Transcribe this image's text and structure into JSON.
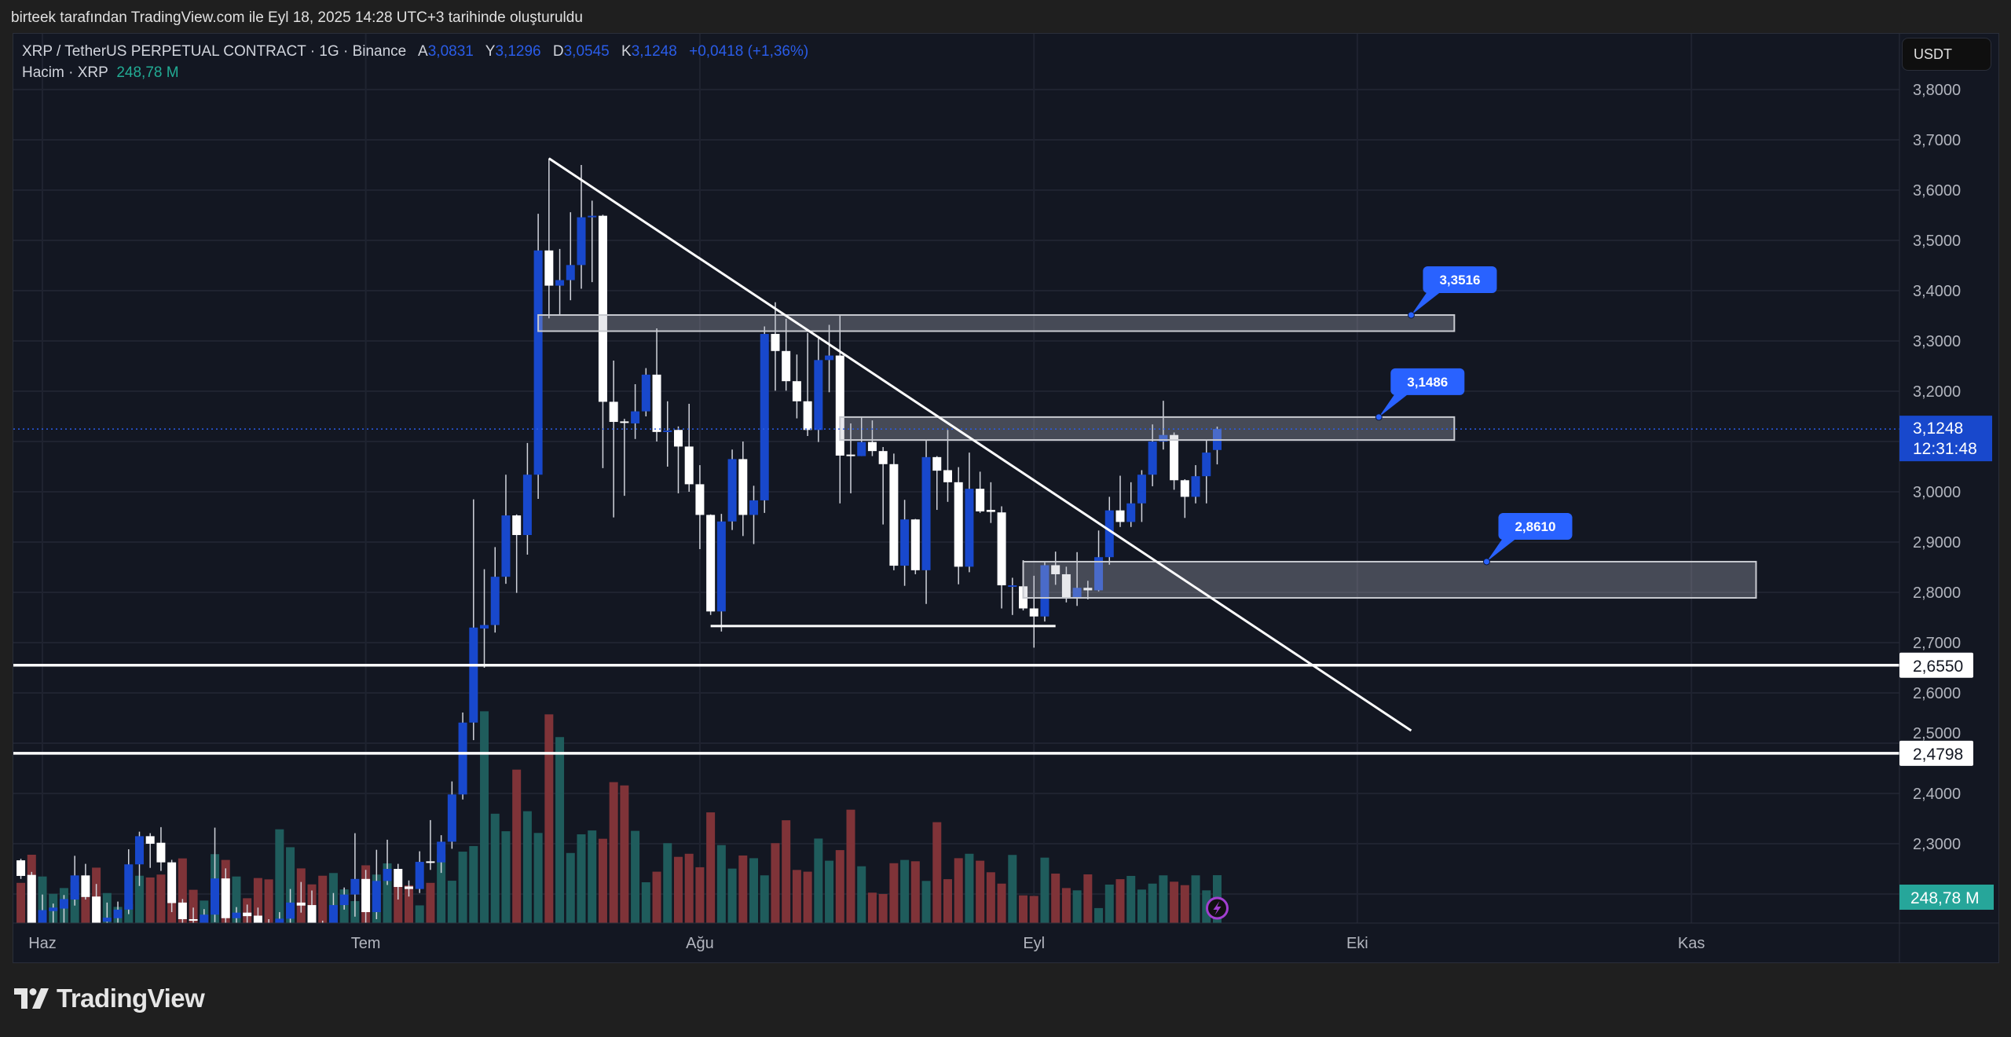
{
  "caption": "birteek tarafından TradingView.com ile Eyl 18, 2025 14:28 UTC+3 tarihinde oluşturuldu",
  "legend": {
    "symbol": "XRP / TetherUS PERPETUAL CONTRACT · 1G · Binance",
    "open_label": "A",
    "open": "3,0831",
    "high_label": "Y",
    "high": "3,1296",
    "low_label": "D",
    "low": "3,0545",
    "close_label": "K",
    "close": "3,1248",
    "change": "+0,0418 (+1,36%)",
    "volume_label": "Hacim · XRP",
    "volume": "248,78 M"
  },
  "currency_button": "USDT",
  "logo_text": "TradingView",
  "colors": {
    "background": "#131722",
    "up_candle": "#1848cc",
    "down_candle": "#ffffff",
    "up_volume": "#1f5c5c",
    "down_volume": "#7f3338",
    "price_label": "#1848cc",
    "volume_label": "#26a69a",
    "callout": "#2962ff",
    "alert_icon": "#a23fd0"
  },
  "chart_data": {
    "type": "candlestick",
    "title": "",
    "ylabel": "",
    "xlabel": "",
    "ylim": [
      2.1,
      3.85
    ],
    "grid": true,
    "y_ticks": [
      "3,8000",
      "3,7000",
      "3,6000",
      "3,5000",
      "3,4000",
      "3,3000",
      "3,2000",
      "3,0000",
      "2,9000",
      "2,8000",
      "2,7000",
      "2,6000",
      "2,5000",
      "2,4000",
      "2,3000"
    ],
    "y_tick_values": [
      3.8,
      3.7,
      3.6,
      3.5,
      3.4,
      3.3,
      3.2,
      3.0,
      2.9,
      2.8,
      2.7,
      2.6,
      2.5,
      2.4,
      2.3
    ],
    "x_ticks": [
      {
        "label": "Haz",
        "date": "2025-06-01"
      },
      {
        "label": "Tem",
        "date": "2025-07-01"
      },
      {
        "label": "Ağu",
        "date": "2025-08-01"
      },
      {
        "label": "Eyl",
        "date": "2025-09-01"
      },
      {
        "label": "Eki",
        "date": "2025-10-01"
      },
      {
        "label": "Kas",
        "date": "2025-11-01"
      }
    ],
    "columns": [
      "date",
      "open",
      "high",
      "low",
      "close",
      "volume_m"
    ],
    "candles": [
      [
        "2025-05-30",
        2.267,
        2.27,
        2.23,
        2.236,
        209
      ],
      [
        "2025-05-31",
        2.238,
        2.244,
        2.14,
        2.142,
        355
      ],
      [
        "2025-06-01",
        2.142,
        2.199,
        2.14,
        2.168,
        242
      ],
      [
        "2025-06-02",
        2.166,
        2.181,
        2.142,
        2.173,
        152
      ],
      [
        "2025-06-03",
        2.171,
        2.198,
        2.142,
        2.19,
        182
      ],
      [
        "2025-06-04",
        2.189,
        2.276,
        2.177,
        2.237,
        212
      ],
      [
        "2025-06-05",
        2.237,
        2.26,
        2.189,
        2.194,
        135
      ],
      [
        "2025-06-06",
        2.195,
        2.22,
        2.14,
        2.142,
        288
      ],
      [
        "2025-06-07",
        2.145,
        2.183,
        2.14,
        2.153,
        156
      ],
      [
        "2025-06-08",
        2.152,
        2.185,
        2.142,
        2.169,
        84
      ],
      [
        "2025-06-09",
        2.169,
        2.289,
        2.16,
        2.259,
        100
      ],
      [
        "2025-06-10",
        2.259,
        2.324,
        2.216,
        2.315,
        246
      ],
      [
        "2025-06-11",
        2.315,
        2.321,
        2.252,
        2.3,
        237
      ],
      [
        "2025-06-12",
        2.302,
        2.333,
        2.246,
        2.263,
        252
      ],
      [
        "2025-06-13",
        2.263,
        2.268,
        2.164,
        2.182,
        209
      ],
      [
        "2025-06-14",
        2.183,
        2.19,
        2.14,
        2.15,
        336
      ],
      [
        "2025-06-15",
        2.15,
        2.173,
        2.13,
        2.148,
        173
      ],
      [
        "2025-06-16",
        2.142,
        2.17,
        2.13,
        2.159,
        117
      ],
      [
        "2025-06-17",
        2.159,
        2.332,
        2.144,
        2.231,
        358
      ],
      [
        "2025-06-18",
        2.231,
        2.251,
        2.14,
        2.152,
        328
      ],
      [
        "2025-06-19",
        2.152,
        2.174,
        2.14,
        2.163,
        242
      ],
      [
        "2025-06-20",
        2.163,
        2.179,
        2.14,
        2.156,
        129
      ],
      [
        "2025-06-21",
        2.157,
        2.173,
        2.13,
        2.142,
        234
      ],
      [
        "2025-06-22",
        2.142,
        2.15,
        2.06,
        2.11,
        227
      ],
      [
        "2025-06-23",
        2.11,
        2.164,
        2.1,
        2.151,
        487
      ],
      [
        "2025-06-24",
        2.151,
        2.21,
        2.14,
        2.183,
        394
      ],
      [
        "2025-06-25",
        2.183,
        2.224,
        2.163,
        2.177,
        284
      ],
      [
        "2025-06-26",
        2.178,
        2.207,
        2.13,
        2.142,
        201
      ],
      [
        "2025-06-27",
        2.142,
        2.147,
        2.1,
        2.12,
        246
      ],
      [
        "2025-06-28",
        2.12,
        2.202,
        2.11,
        2.178,
        260
      ],
      [
        "2025-06-29",
        2.178,
        2.213,
        2.169,
        2.199,
        175
      ],
      [
        "2025-06-30",
        2.199,
        2.321,
        2.155,
        2.23,
        114
      ],
      [
        "2025-07-01",
        2.23,
        2.248,
        2.14,
        2.164,
        300
      ],
      [
        "2025-07-02",
        2.164,
        2.288,
        2.15,
        2.226,
        252
      ],
      [
        "2025-07-03",
        2.226,
        2.308,
        2.218,
        2.25,
        310
      ],
      [
        "2025-07-04",
        2.25,
        2.26,
        2.189,
        2.214,
        203
      ],
      [
        "2025-07-05",
        2.215,
        2.227,
        2.195,
        2.21,
        196
      ],
      [
        "2025-07-06",
        2.21,
        2.285,
        2.202,
        2.264,
        92
      ],
      [
        "2025-07-07",
        2.265,
        2.347,
        2.248,
        2.263,
        209
      ],
      [
        "2025-07-08",
        2.263,
        2.317,
        2.242,
        2.304,
        358
      ],
      [
        "2025-07-09",
        2.304,
        2.424,
        2.29,
        2.398,
        220
      ],
      [
        "2025-07-10",
        2.398,
        2.561,
        2.388,
        2.541,
        371
      ],
      [
        "2025-07-11",
        2.541,
        2.985,
        2.506,
        2.73,
        400
      ],
      [
        "2025-07-12",
        2.728,
        2.846,
        2.65,
        2.735,
        1100
      ],
      [
        "2025-07-13",
        2.735,
        2.89,
        2.72,
        2.831,
        568
      ],
      [
        "2025-07-14",
        2.831,
        3.034,
        2.817,
        2.953,
        477
      ],
      [
        "2025-07-15",
        2.953,
        2.955,
        2.799,
        2.914,
        797
      ],
      [
        "2025-07-16",
        2.914,
        3.097,
        2.875,
        3.034,
        581
      ],
      [
        "2025-07-17",
        3.034,
        3.553,
        2.986,
        3.48,
        468
      ],
      [
        "2025-07-18",
        3.48,
        3.663,
        3.345,
        3.41,
        1084
      ],
      [
        "2025-07-19",
        3.41,
        3.483,
        3.35,
        3.421,
        966
      ],
      [
        "2025-07-20",
        3.421,
        3.556,
        3.381,
        3.451,
        364
      ],
      [
        "2025-07-21",
        3.451,
        3.65,
        3.404,
        3.546,
        461
      ],
      [
        "2025-07-22",
        3.546,
        3.579,
        3.417,
        3.549,
        481
      ],
      [
        "2025-07-23",
        3.549,
        3.551,
        3.047,
        3.179,
        438
      ],
      [
        "2025-07-24",
        3.179,
        3.261,
        2.949,
        3.139,
        732
      ],
      [
        "2025-07-25",
        3.14,
        3.145,
        2.992,
        3.137,
        715
      ],
      [
        "2025-07-26",
        3.136,
        3.214,
        3.105,
        3.16,
        479
      ],
      [
        "2025-07-27",
        3.16,
        3.246,
        3.15,
        3.233,
        212
      ],
      [
        "2025-07-28",
        3.233,
        3.325,
        3.1,
        3.119,
        267
      ],
      [
        "2025-07-29",
        3.119,
        3.18,
        3.05,
        3.122,
        415
      ],
      [
        "2025-07-30",
        3.123,
        3.13,
        2.997,
        3.09,
        344
      ],
      [
        "2025-07-31",
        3.09,
        3.175,
        3.0,
        3.015,
        360
      ],
      [
        "2025-08-01",
        3.015,
        3.053,
        2.886,
        2.954,
        290
      ],
      [
        "2025-08-02",
        2.954,
        2.955,
        2.755,
        2.762,
        575
      ],
      [
        "2025-08-03",
        2.762,
        2.956,
        2.722,
        2.941,
        405
      ],
      [
        "2025-08-04",
        2.941,
        3.084,
        2.924,
        3.065,
        283
      ],
      [
        "2025-08-05",
        3.065,
        3.1,
        2.912,
        2.954,
        351
      ],
      [
        "2025-08-06",
        2.954,
        3.012,
        2.896,
        2.983,
        337
      ],
      [
        "2025-08-07",
        2.983,
        3.329,
        2.958,
        3.314,
        248
      ],
      [
        "2025-08-08",
        3.314,
        3.377,
        3.201,
        3.28,
        415
      ],
      [
        "2025-08-09",
        3.28,
        3.344,
        3.201,
        3.22,
        534
      ],
      [
        "2025-08-10",
        3.22,
        3.273,
        3.146,
        3.18,
        276
      ],
      [
        "2025-08-11",
        3.18,
        3.316,
        3.111,
        3.123,
        267
      ],
      [
        "2025-08-12",
        3.123,
        3.305,
        3.099,
        3.262,
        439
      ],
      [
        "2025-08-13",
        3.262,
        3.332,
        3.198,
        3.271,
        324
      ],
      [
        "2025-08-14",
        3.271,
        3.352,
        2.977,
        3.072,
        379
      ],
      [
        "2025-08-15",
        3.074,
        3.136,
        2.997,
        3.072,
        589
      ],
      [
        "2025-08-16",
        3.071,
        3.15,
        3.071,
        3.099,
        295
      ],
      [
        "2025-08-17",
        3.099,
        3.142,
        3.071,
        3.081,
        158
      ],
      [
        "2025-08-18",
        3.081,
        3.089,
        2.935,
        3.055,
        151
      ],
      [
        "2025-08-19",
        3.055,
        3.076,
        2.844,
        2.853,
        311
      ],
      [
        "2025-08-20",
        2.853,
        2.984,
        2.813,
        2.945,
        328
      ],
      [
        "2025-08-21",
        2.945,
        2.946,
        2.836,
        2.844,
        321
      ],
      [
        "2025-08-22",
        2.844,
        3.102,
        2.777,
        3.069,
        219
      ],
      [
        "2025-08-23",
        3.069,
        3.071,
        2.964,
        3.042,
        524
      ],
      [
        "2025-08-24",
        3.043,
        3.123,
        2.98,
        3.019,
        228
      ],
      [
        "2025-08-25",
        3.019,
        3.049,
        2.816,
        2.851,
        337
      ],
      [
        "2025-08-26",
        2.851,
        3.078,
        2.84,
        3.006,
        360
      ],
      [
        "2025-08-27",
        3.006,
        3.04,
        2.958,
        2.961,
        324
      ],
      [
        "2025-08-28",
        2.964,
        3.019,
        2.938,
        2.96,
        264
      ],
      [
        "2025-08-29",
        2.959,
        2.971,
        2.768,
        2.814,
        205
      ],
      [
        "2025-08-30",
        2.814,
        2.829,
        2.755,
        2.814,
        354
      ],
      [
        "2025-08-31",
        2.812,
        2.864,
        2.764,
        2.768,
        144
      ],
      [
        "2025-09-01",
        2.768,
        2.833,
        2.69,
        2.752,
        141
      ],
      [
        "2025-09-02",
        2.752,
        2.86,
        2.742,
        2.854,
        340
      ],
      [
        "2025-09-03",
        2.854,
        2.881,
        2.815,
        2.836,
        257
      ],
      [
        "2025-09-04",
        2.836,
        2.851,
        2.78,
        2.788,
        182
      ],
      [
        "2025-09-05",
        2.788,
        2.88,
        2.773,
        2.809,
        170
      ],
      [
        "2025-09-06",
        2.809,
        2.823,
        2.786,
        2.804,
        253
      ],
      [
        "2025-09-07",
        2.804,
        2.923,
        2.802,
        2.87,
        78
      ],
      [
        "2025-09-08",
        2.87,
        2.99,
        2.855,
        2.963,
        200
      ],
      [
        "2025-09-09",
        2.963,
        3.032,
        2.93,
        2.94,
        228
      ],
      [
        "2025-09-10",
        2.94,
        3.019,
        2.93,
        2.977,
        245
      ],
      [
        "2025-09-11",
        2.977,
        3.043,
        2.94,
        3.034,
        174
      ],
      [
        "2025-09-12",
        3.034,
        3.134,
        3.011,
        3.1,
        205
      ],
      [
        "2025-09-13",
        3.1,
        3.181,
        3.084,
        3.113,
        248
      ],
      [
        "2025-09-14",
        3.113,
        3.118,
        3.004,
        3.023,
        215
      ],
      [
        "2025-09-15",
        3.023,
        3.025,
        2.948,
        2.99,
        197
      ],
      [
        "2025-09-16",
        2.99,
        3.053,
        2.977,
        3.031,
        248
      ],
      [
        "2025-09-17",
        3.031,
        3.103,
        2.977,
        3.078,
        170
      ],
      [
        "2025-09-18",
        3.0831,
        3.1296,
        3.0545,
        3.1248,
        248.78
      ]
    ],
    "last_price": {
      "value": 3.1248,
      "label": "3,1248",
      "countdown": "12:31:48"
    },
    "last_volume": {
      "value": 248.78,
      "label": "248,78 M"
    },
    "drawings": {
      "horizontal_lines": [
        {
          "price": 2.655,
          "label": "2,6550"
        },
        {
          "price": 2.4798,
          "label": "2,4798"
        }
      ],
      "trendline": {
        "from": [
          "2025-07-18",
          3.663
        ],
        "to": [
          "2025-10-06",
          2.525
        ]
      },
      "support_line": {
        "from": [
          "2025-08-02",
          2.733
        ],
        "to": [
          "2025-09-03",
          2.733
        ]
      },
      "zones": [
        {
          "from": "2025-07-17",
          "to": "2025-10-10",
          "top": 3.3516,
          "bottom": 3.3195,
          "callout": "3,3516",
          "anchor": "2025-10-06"
        },
        {
          "from": "2025-08-14",
          "to": "2025-10-10",
          "top": 3.1486,
          "bottom": 3.103,
          "callout": "3,1486",
          "anchor": "2025-10-03"
        },
        {
          "from": "2025-08-31",
          "to": "2025-11-07",
          "top": 2.861,
          "bottom": 2.789,
          "callout": "2,8610",
          "anchor": "2025-10-13"
        }
      ]
    }
  }
}
